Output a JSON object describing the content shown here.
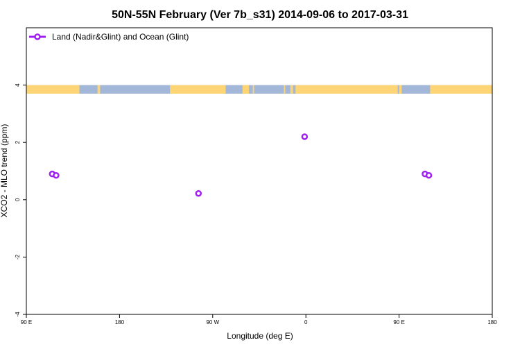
{
  "chart_data": {
    "type": "scatter",
    "title": "50N-55N February (Ver 7b_s31)   2014-09-06 to 2017-03-31",
    "xlabel": "Longitude (deg E)",
    "ylabel": "XCO2 - MLO trend (ppm)",
    "xlim": [
      90,
      450
    ],
    "ylim": [
      -4,
      6
    ],
    "x_ticks": [
      {
        "value": 90,
        "label": "90 E"
      },
      {
        "value": 162,
        "label": "180"
      },
      {
        "value": 234,
        "label": "90 W"
      },
      {
        "value": 306,
        "label": "0"
      },
      {
        "value": 378,
        "label": "90 E"
      },
      {
        "value": 450,
        "label": "180"
      }
    ],
    "y_ticks": [
      {
        "value": -4,
        "label": "-4"
      },
      {
        "value": -2,
        "label": "-2"
      },
      {
        "value": 0,
        "label": "0"
      },
      {
        "value": 2,
        "label": "2"
      },
      {
        "value": 4,
        "label": "4"
      }
    ],
    "grid": false,
    "legend": {
      "position": "top-left",
      "entries": [
        "Land (Nadir&Glint) and Ocean (Glint)"
      ]
    },
    "series": [
      {
        "name": "Land (Nadir&Glint) and Ocean (Glint)",
        "color": "#a020f0",
        "marker": "open-circle",
        "points": [
          {
            "x": 110,
            "y": 0.9
          },
          {
            "x": 113,
            "y": 0.85
          },
          {
            "x": 223,
            "y": 0.22
          },
          {
            "x": 305,
            "y": 2.2
          },
          {
            "x": 398,
            "y": 0.9
          },
          {
            "x": 401,
            "y": 0.85
          }
        ]
      }
    ],
    "land_mask_band": {
      "y_range": [
        3.7,
        4.0
      ],
      "ocean_color": "#a3b8d8",
      "land_color": "#fdd577",
      "land_segments": [
        [
          90,
          131
        ],
        [
          145,
          147
        ],
        [
          201,
          244
        ],
        [
          257,
          262
        ],
        [
          265,
          266
        ],
        [
          289,
          290
        ],
        [
          294,
          296
        ],
        [
          298,
          377
        ],
        [
          378,
          380
        ],
        [
          402,
          451
        ]
      ]
    }
  }
}
